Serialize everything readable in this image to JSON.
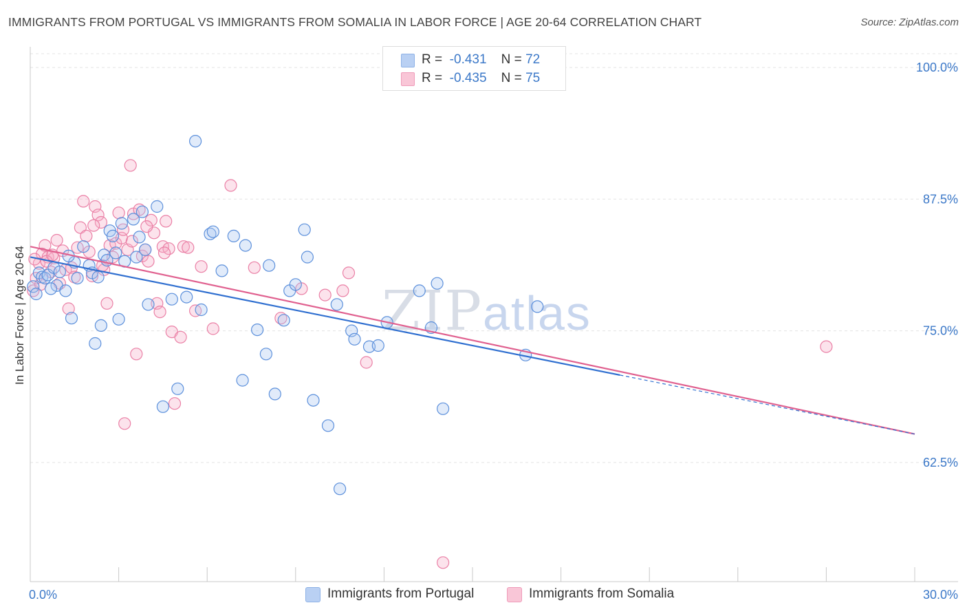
{
  "title": "IMMIGRANTS FROM PORTUGAL VS IMMIGRANTS FROM SOMALIA IN LABOR FORCE | AGE 20-64 CORRELATION CHART",
  "source": "Source: ZipAtlas.com",
  "watermark": {
    "zip": "ZIP",
    "atlas": "atlas"
  },
  "legend": {
    "portugal": {
      "r_label": "R =",
      "r_value": "-0.431",
      "n_label": "N =",
      "n_value": "72"
    },
    "somalia": {
      "r_label": "R =",
      "r_value": "-0.435",
      "n_label": "N =",
      "n_value": "75"
    }
  },
  "bottom_legend": {
    "portugal": "Immigrants from Portugal",
    "somalia": "Immigrants from Somalia"
  },
  "chart_data": {
    "type": "scatter",
    "title": "IMMIGRANTS FROM PORTUGAL VS IMMIGRANTS FROM SOMALIA IN LABOR FORCE | AGE 20-64 CORRELATION CHART",
    "xlabel": "",
    "ylabel": "In Labor Force | Age 20-64",
    "xlim": [
      0,
      30
    ],
    "ylim": [
      50,
      103
    ],
    "x_tick_labels": [
      "0.0%",
      "30.0%"
    ],
    "y_ticks": [
      62.5,
      75.0,
      87.5,
      100.0
    ],
    "y_tick_labels": [
      "62.5%",
      "75.0%",
      "87.5%",
      "100.0%"
    ],
    "grid": true,
    "colors": {
      "portugal": "#5b8fdb",
      "somalia": "#ea7fa5",
      "portugal_line": "#2f6fd0",
      "somalia_line": "#e0608f"
    },
    "series": [
      {
        "name": "Immigrants from Portugal",
        "trend": {
          "x": [
            0,
            20
          ],
          "y": [
            82.0,
            70.8
          ],
          "dashed_to": [
            30,
            65.2
          ]
        },
        "points": [
          [
            0.1,
            79.2
          ],
          [
            0.3,
            80.5
          ],
          [
            0.4,
            80.1
          ],
          [
            0.5,
            80.0
          ],
          [
            0.6,
            80.3
          ],
          [
            0.8,
            81.0
          ],
          [
            0.9,
            79.3
          ],
          [
            1.0,
            80.6
          ],
          [
            1.2,
            78.8
          ],
          [
            1.4,
            76.2
          ],
          [
            1.5,
            81.5
          ],
          [
            1.6,
            80.0
          ],
          [
            1.8,
            83.0
          ],
          [
            2.0,
            81.2
          ],
          [
            2.1,
            80.5
          ],
          [
            2.2,
            73.8
          ],
          [
            2.3,
            80.1
          ],
          [
            2.4,
            75.5
          ],
          [
            2.5,
            82.2
          ],
          [
            2.6,
            81.7
          ],
          [
            2.7,
            84.5
          ],
          [
            2.8,
            84.0
          ],
          [
            3.0,
            76.1
          ],
          [
            3.1,
            85.2
          ],
          [
            3.2,
            81.6
          ],
          [
            3.5,
            85.6
          ],
          [
            3.6,
            82.0
          ],
          [
            3.7,
            83.9
          ],
          [
            3.8,
            86.3
          ],
          [
            3.9,
            82.7
          ],
          [
            4.0,
            77.5
          ],
          [
            4.3,
            86.8
          ],
          [
            4.5,
            67.8
          ],
          [
            4.8,
            78.0
          ],
          [
            5.0,
            69.5
          ],
          [
            5.6,
            93.0
          ],
          [
            5.8,
            77.0
          ],
          [
            6.1,
            84.2
          ],
          [
            6.2,
            84.4
          ],
          [
            6.5,
            80.7
          ],
          [
            6.9,
            84.0
          ],
          [
            7.2,
            70.3
          ],
          [
            7.3,
            83.1
          ],
          [
            7.7,
            75.1
          ],
          [
            8.0,
            72.8
          ],
          [
            8.1,
            81.2
          ],
          [
            8.3,
            69.0
          ],
          [
            8.6,
            76.0
          ],
          [
            8.8,
            78.8
          ],
          [
            9.0,
            79.4
          ],
          [
            9.3,
            84.6
          ],
          [
            9.4,
            82.0
          ],
          [
            9.6,
            68.4
          ],
          [
            10.1,
            66.0
          ],
          [
            10.5,
            60.0
          ],
          [
            10.4,
            77.5
          ],
          [
            10.9,
            75.0
          ],
          [
            11.0,
            74.2
          ],
          [
            11.5,
            73.5
          ],
          [
            11.8,
            73.6
          ],
          [
            12.1,
            75.8
          ],
          [
            13.2,
            78.8
          ],
          [
            13.6,
            75.3
          ],
          [
            13.8,
            79.5
          ],
          [
            14.0,
            67.6
          ],
          [
            16.8,
            72.7
          ],
          [
            17.2,
            77.3
          ],
          [
            0.2,
            78.5
          ],
          [
            0.7,
            79.0
          ],
          [
            1.3,
            82.1
          ],
          [
            2.9,
            82.4
          ],
          [
            5.3,
            78.2
          ]
        ]
      },
      {
        "name": "Immigrants from Somalia",
        "trend": {
          "x": [
            0,
            30
          ],
          "y": [
            83.0,
            65.2
          ]
        },
        "points": [
          [
            0.1,
            78.8
          ],
          [
            0.2,
            80.0
          ],
          [
            0.3,
            81.4
          ],
          [
            0.4,
            82.3
          ],
          [
            0.5,
            83.1
          ],
          [
            0.6,
            82.0
          ],
          [
            0.7,
            80.6
          ],
          [
            0.8,
            81.9
          ],
          [
            0.9,
            83.6
          ],
          [
            1.0,
            79.5
          ],
          [
            1.1,
            82.6
          ],
          [
            1.2,
            80.8
          ],
          [
            1.3,
            77.1
          ],
          [
            1.4,
            81.0
          ],
          [
            1.6,
            82.9
          ],
          [
            1.7,
            84.8
          ],
          [
            1.8,
            87.3
          ],
          [
            1.9,
            84.0
          ],
          [
            2.0,
            82.5
          ],
          [
            2.1,
            80.2
          ],
          [
            2.2,
            86.8
          ],
          [
            2.3,
            86.0
          ],
          [
            2.4,
            85.3
          ],
          [
            2.5,
            80.8
          ],
          [
            2.6,
            77.6
          ],
          [
            2.7,
            83.1
          ],
          [
            2.8,
            82.0
          ],
          [
            2.9,
            83.3
          ],
          [
            3.0,
            86.2
          ],
          [
            3.1,
            83.8
          ],
          [
            3.2,
            66.2
          ],
          [
            3.3,
            82.7
          ],
          [
            3.4,
            90.7
          ],
          [
            3.5,
            86.1
          ],
          [
            3.6,
            72.8
          ],
          [
            3.7,
            86.5
          ],
          [
            3.8,
            82.1
          ],
          [
            3.9,
            82.7
          ],
          [
            4.0,
            81.6
          ],
          [
            4.1,
            85.5
          ],
          [
            4.2,
            84.3
          ],
          [
            4.3,
            77.6
          ],
          [
            4.4,
            76.8
          ],
          [
            4.5,
            83.0
          ],
          [
            4.6,
            85.4
          ],
          [
            4.7,
            82.8
          ],
          [
            4.8,
            74.9
          ],
          [
            4.9,
            68.1
          ],
          [
            5.1,
            74.4
          ],
          [
            5.2,
            83.0
          ],
          [
            5.6,
            76.9
          ],
          [
            5.8,
            81.1
          ],
          [
            6.2,
            75.2
          ],
          [
            6.8,
            88.8
          ],
          [
            7.6,
            81.0
          ],
          [
            8.5,
            76.2
          ],
          [
            9.2,
            79.0
          ],
          [
            10.0,
            78.4
          ],
          [
            10.6,
            78.8
          ],
          [
            10.8,
            80.5
          ],
          [
            11.4,
            72.0
          ],
          [
            14.0,
            53.0
          ],
          [
            27.0,
            73.5
          ],
          [
            0.15,
            81.8
          ],
          [
            0.35,
            79.4
          ],
          [
            0.55,
            81.6
          ],
          [
            0.75,
            82.2
          ],
          [
            1.5,
            80.1
          ],
          [
            2.15,
            85.0
          ],
          [
            2.45,
            81.2
          ],
          [
            3.15,
            84.6
          ],
          [
            3.45,
            83.5
          ],
          [
            3.95,
            84.9
          ],
          [
            4.55,
            82.4
          ],
          [
            5.35,
            82.9
          ]
        ]
      }
    ]
  }
}
